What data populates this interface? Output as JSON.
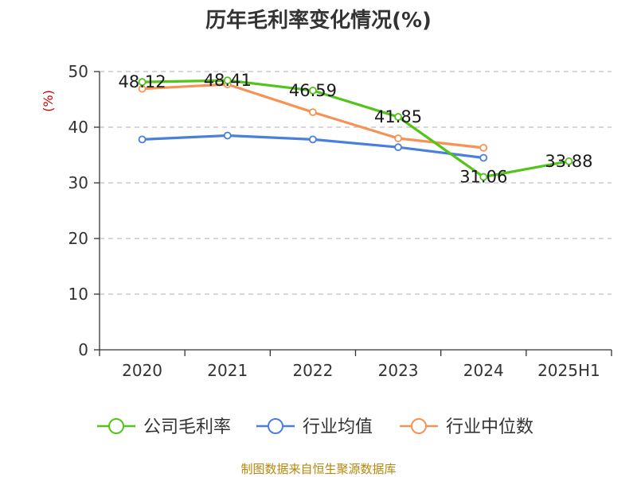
{
  "chart_data": {
    "type": "line",
    "title": "历年毛利率变化情况(%)",
    "ylabel": "(%)",
    "categories": [
      "2020",
      "2021",
      "2022",
      "2023",
      "2024",
      "2025H1"
    ],
    "ylim": [
      0,
      50
    ],
    "yticks": [
      0,
      10,
      20,
      30,
      40,
      50
    ],
    "grid": true,
    "legend_position": "bottom",
    "series": [
      {
        "name": "公司毛利率",
        "color": "#52c41a",
        "values": [
          48.12,
          48.41,
          46.59,
          41.85,
          31.06,
          33.88
        ],
        "show_labels": true
      },
      {
        "name": "行业均值",
        "color": "#4a7fdc",
        "values": [
          37.8,
          38.5,
          37.8,
          36.4,
          34.5,
          null
        ],
        "show_labels": false
      },
      {
        "name": "行业中位数",
        "color": "#f59355",
        "values": [
          46.9,
          47.7,
          42.7,
          38.0,
          36.3,
          null
        ],
        "show_labels": false
      }
    ],
    "source": "制图数据来自恒生聚源数据库"
  }
}
